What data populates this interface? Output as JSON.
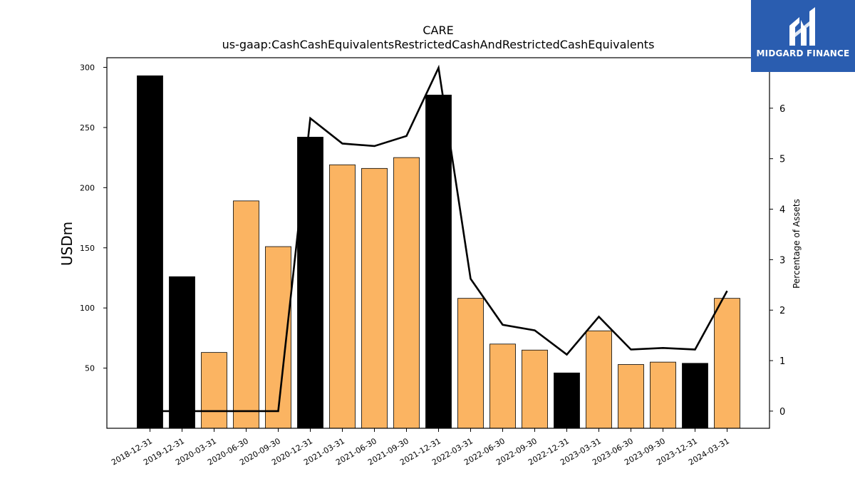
{
  "chart_data": {
    "type": "bar",
    "title": "CARE",
    "subtitle": "us-gaap:CashCashEquivalentsRestrictedCashAndRestrictedCashEquivalents",
    "ylabel": "USDm",
    "ylabel_right": "Percentage of Assets",
    "categories": [
      "2018-12-31",
      "2019-12-31",
      "2020-03-31",
      "2020-06-30",
      "2020-09-30",
      "2020-12-31",
      "2021-03-31",
      "2021-06-30",
      "2021-09-30",
      "2021-12-31",
      "2022-03-31",
      "2022-06-30",
      "2022-09-30",
      "2022-12-31",
      "2023-03-31",
      "2023-06-30",
      "2023-09-30",
      "2023-12-31",
      "2024-03-31"
    ],
    "values": [
      293,
      126,
      63,
      189,
      151,
      242,
      219,
      216,
      225,
      277,
      108,
      70,
      65,
      46,
      81,
      53,
      55,
      54,
      108
    ],
    "bar_colors": [
      "#000000",
      "#000000",
      "#fbb462",
      "#fbb462",
      "#fbb462",
      "#000000",
      "#fbb462",
      "#fbb462",
      "#fbb462",
      "#000000",
      "#fbb462",
      "#fbb462",
      "#fbb462",
      "#000000",
      "#fbb462",
      "#fbb462",
      "#fbb462",
      "#000000",
      "#fbb462"
    ],
    "line_series": {
      "name": "",
      "values": [
        0,
        0,
        0,
        0,
        0,
        5.8,
        5.3,
        5.25,
        5.45,
        6.8,
        2.62,
        1.71,
        1.6,
        1.12,
        1.87,
        1.22,
        1.25,
        1.22,
        2.38
      ]
    },
    "yticks_left": [
      "50",
      "100",
      "150",
      "200",
      "250",
      "300"
    ],
    "yticks_right": [
      "0",
      "1",
      "2",
      "3",
      "4",
      "5",
      "6"
    ],
    "ylim": [
      0,
      308
    ],
    "ylim_right": [
      -0.34,
      7.0
    ],
    "grid": false,
    "legend": "none"
  },
  "logo": {
    "text": "MIDGARD FINANCE",
    "color": "#2a5db0"
  }
}
